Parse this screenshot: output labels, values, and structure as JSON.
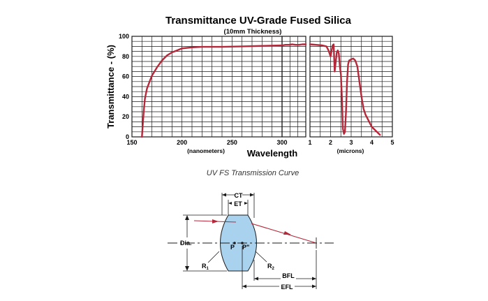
{
  "chart_data": {
    "type": "line",
    "title": "Transmittance UV-Grade Fused Silica",
    "subtitle": "(10mm Thickness)",
    "ylabel": "Transmittance - (%)",
    "xlabel": "Wavelength",
    "ylim": [
      0,
      100
    ],
    "y_ticks": [
      "0",
      "20",
      "40",
      "60",
      "80",
      "100"
    ],
    "grid": true,
    "panels": [
      {
        "unit_label": "(nanometers)",
        "x_range": [
          150,
          300
        ],
        "x_ticks": [
          "150",
          "200",
          "250",
          "300"
        ],
        "series": [
          {
            "color": "#b5283a",
            "x": [
              160,
              161,
              162,
              163,
              165,
              168,
              170,
              175,
              180,
              185,
              190,
              195,
              200,
              210,
              220,
              240,
              260,
              280,
              300
            ],
            "y": [
              0,
              15,
              28,
              38,
              48,
              56,
              61,
              69,
              76,
              81,
              84,
              86,
              88,
              89,
              89.5,
              89.5,
              90,
              90.5,
              91
            ]
          }
        ]
      },
      {
        "unit_label": "",
        "x_range": [
          300,
          1000
        ],
        "x_ticks": [],
        "series": [
          {
            "color": "#b5283a",
            "x": [
              300,
              400,
              500,
              600,
              700,
              800,
              900,
              1000
            ],
            "y": [
              91,
              91.5,
              91.5,
              92,
              91.5,
              91.5,
              92,
              92
            ]
          }
        ]
      },
      {
        "unit_label": "(microns)",
        "x_range": [
          1,
          5
        ],
        "x_ticks": [
          "1",
          "2",
          "3",
          "4",
          "5"
        ],
        "series": [
          {
            "color": "#b5283a",
            "x": [
              1.0,
              1.3,
              1.6,
              1.8,
              1.9,
              2.0,
              2.1,
              2.15,
              2.2,
              2.3,
              2.35,
              2.4,
              2.45,
              2.5,
              2.55,
              2.6,
              2.65,
              2.7,
              2.75,
              2.8,
              2.85,
              2.9,
              3.0,
              3.1,
              3.2,
              3.3,
              3.4,
              3.5,
              3.6,
              3.7,
              3.8,
              3.9,
              4.0,
              4.2,
              4.4
            ],
            "y": [
              92,
              91.5,
              91,
              90,
              86,
              80,
              91,
              92,
              65,
              84,
              86,
              83,
              70,
              62,
              40,
              8,
              3,
              5,
              25,
              55,
              72,
              76,
              77,
              78,
              76,
              70,
              55,
              40,
              28,
              22,
              18,
              14,
              10,
              6,
              2
            ]
          }
        ]
      }
    ]
  },
  "caption": "UV FS Transmission Curve",
  "diagram": {
    "labels": {
      "ct": "CT",
      "et": "ET",
      "dia": "Dia.",
      "p": "P",
      "p_prime": "P\"",
      "r1": "R1",
      "r2": "R2",
      "bfl": "BFL",
      "efl": "EFL"
    }
  }
}
